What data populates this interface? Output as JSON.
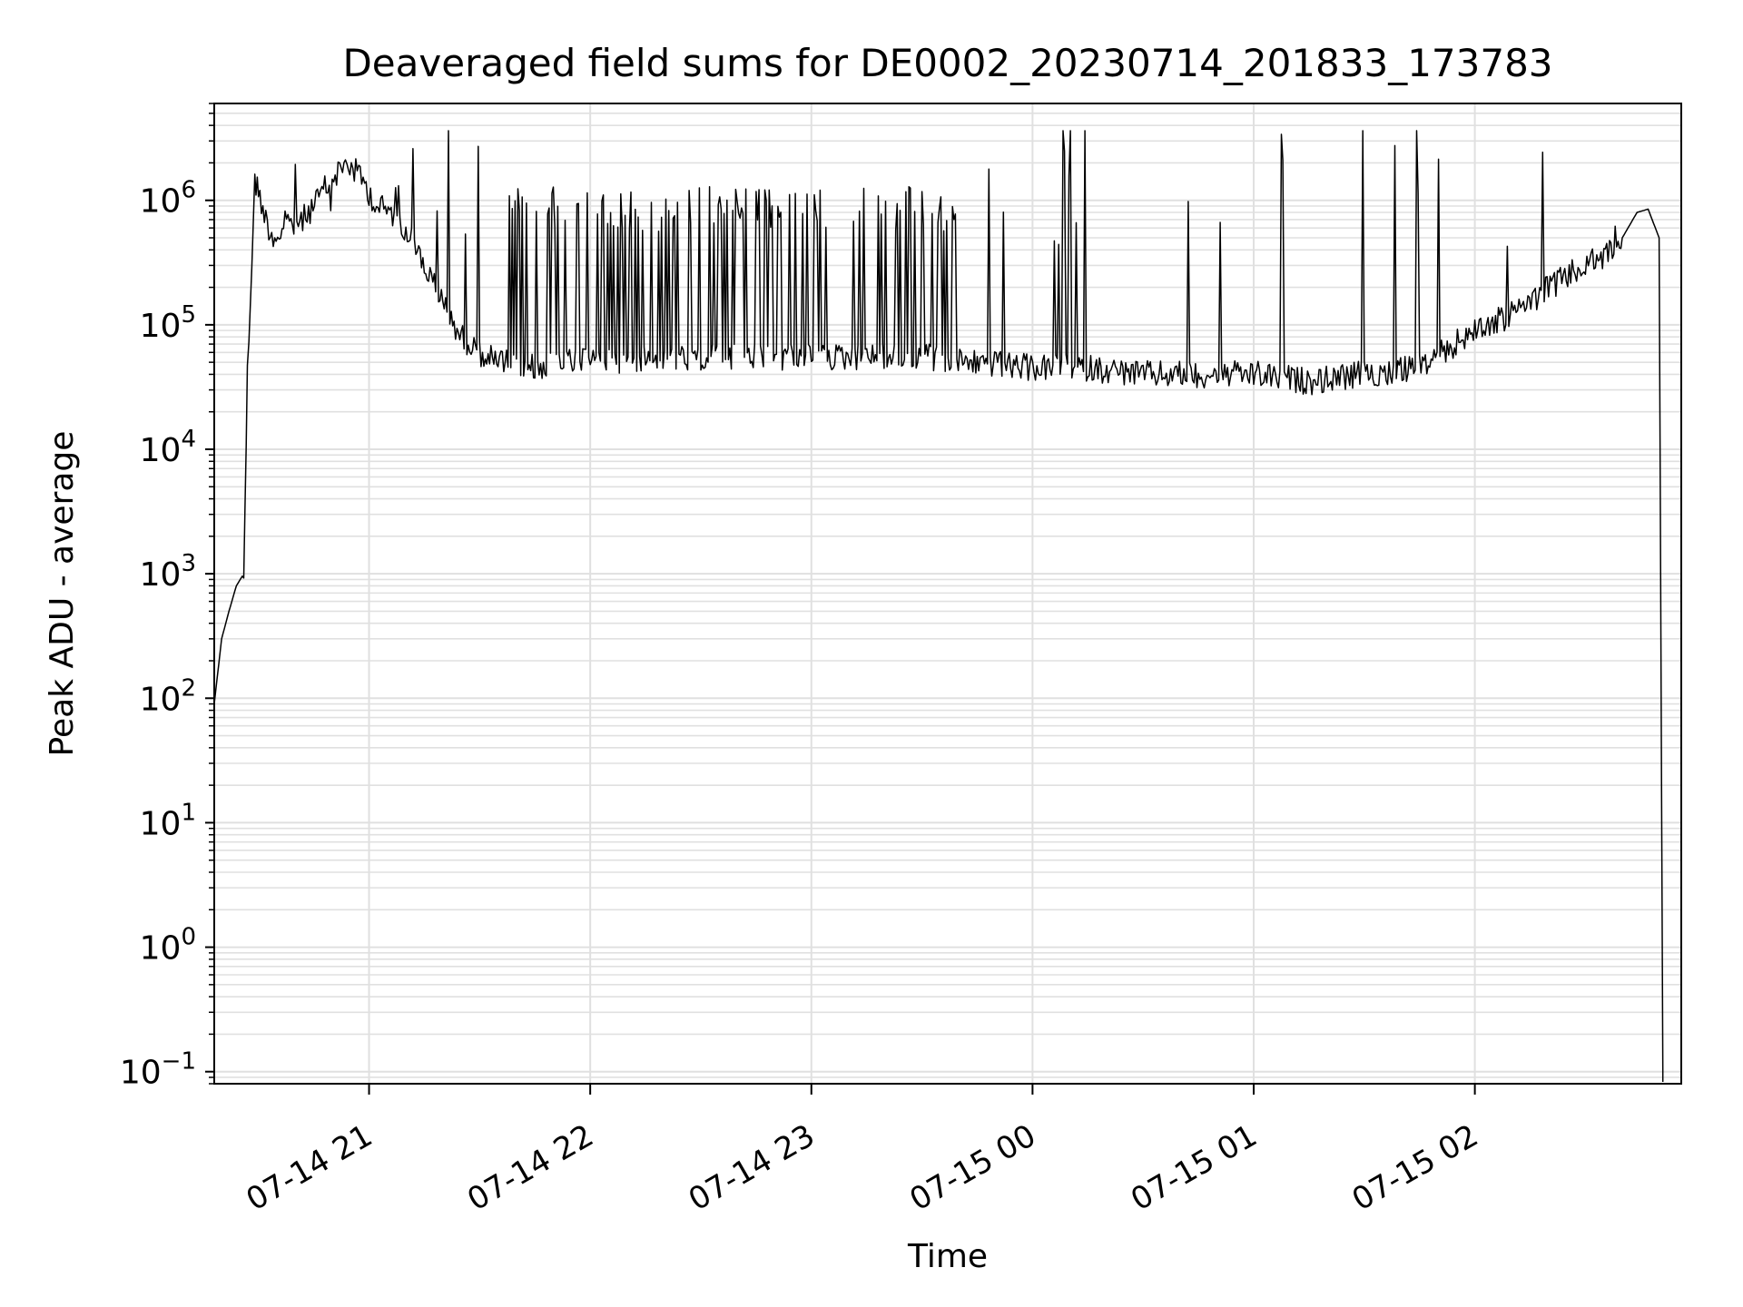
{
  "chart_data": {
    "type": "line",
    "title": "Deaveraged field sums for DE0002_20230714_201833_173783",
    "xlabel": "Time",
    "ylabel": "Peak ADU - average",
    "yscale": "log",
    "ylim": [
      0.08,
      6000000
    ],
    "xlim": [
      "2023-07-14 20:18",
      "2023-07-15 02:56"
    ],
    "x_tick_labels": [
      "07-14 21",
      "07-14 22",
      "07-14 23",
      "07-15 00",
      "07-15 01",
      "07-15 02"
    ],
    "x_tick_values": [
      "2023-07-14 21:00",
      "2023-07-14 22:00",
      "2023-07-14 23:00",
      "2023-07-15 00:00",
      "2023-07-15 01:00",
      "2023-07-15 02:00"
    ],
    "y_tick_labels": [
      {
        "base": "10",
        "exp": "−1",
        "value": 0.1
      },
      {
        "base": "10",
        "exp": "0",
        "value": 1
      },
      {
        "base": "10",
        "exp": "1",
        "value": 10
      },
      {
        "base": "10",
        "exp": "2",
        "value": 100
      },
      {
        "base": "10",
        "exp": "3",
        "value": 1000
      },
      {
        "base": "10",
        "exp": "4",
        "value": 10000
      },
      {
        "base": "10",
        "exp": "5",
        "value": 100000
      },
      {
        "base": "10",
        "exp": "6",
        "value": 1000000
      }
    ],
    "grid": true,
    "line_color": "#000000",
    "grid_color": "#e0e0e0",
    "series": [
      {
        "x": [
          "2023-07-14 20:18",
          "2023-07-14 20:20",
          "2023-07-14 20:22",
          "2023-07-14 20:24",
          "2023-07-14 20:26",
          "2023-07-14 20:27",
          "2023-07-14 20:29",
          "2023-07-14 20:30",
          "2023-07-14 20:32",
          "2023-07-14 20:34",
          "2023-07-14 20:38",
          "2023-07-14 20:42",
          "2023-07-14 20:46",
          "2023-07-14 20:50",
          "2023-07-14 20:54",
          "2023-07-14 20:58",
          "2023-07-14 21:02",
          "2023-07-14 21:06",
          "2023-07-14 21:10",
          "2023-07-14 21:15",
          "2023-07-14 21:20",
          "2023-07-14 21:25",
          "2023-07-14 21:30",
          "2023-07-14 21:35",
          "2023-07-14 21:40",
          "2023-07-14 21:45",
          "2023-07-14 21:50",
          "2023-07-14 22:00",
          "2023-07-14 22:15",
          "2023-07-14 22:30",
          "2023-07-14 22:45",
          "2023-07-14 23:00",
          "2023-07-14 23:15",
          "2023-07-14 23:30",
          "2023-07-14 23:45",
          "2023-07-15 00:00",
          "2023-07-15 00:15",
          "2023-07-15 00:30",
          "2023-07-15 00:45",
          "2023-07-15 01:00",
          "2023-07-15 01:15",
          "2023-07-15 01:30",
          "2023-07-15 01:45",
          "2023-07-15 02:00",
          "2023-07-15 02:10",
          "2023-07-15 02:20",
          "2023-07-15 02:30",
          "2023-07-15 02:35",
          "2023-07-15 02:40",
          "2023-07-15 02:44",
          "2023-07-15 02:47",
          "2023-07-15 02:50",
          "2023-07-15 02:51"
        ],
        "values": [
          90,
          300,
          500,
          800,
          1000,
          40000,
          1400000,
          1200000,
          700000,
          500000,
          600000,
          700000,
          1000000,
          1500000,
          2000000,
          1500000,
          900000,
          800000,
          600000,
          300000,
          150000,
          80000,
          60000,
          50000,
          50000,
          45000,
          50000,
          50000,
          55000,
          55000,
          55000,
          55000,
          55000,
          55000,
          50000,
          45000,
          45000,
          40000,
          40000,
          40000,
          35000,
          40000,
          45000,
          90000,
          120000,
          200000,
          300000,
          350000,
          500000,
          800000,
          850000,
          500000,
          0.1
        ]
      }
    ]
  }
}
